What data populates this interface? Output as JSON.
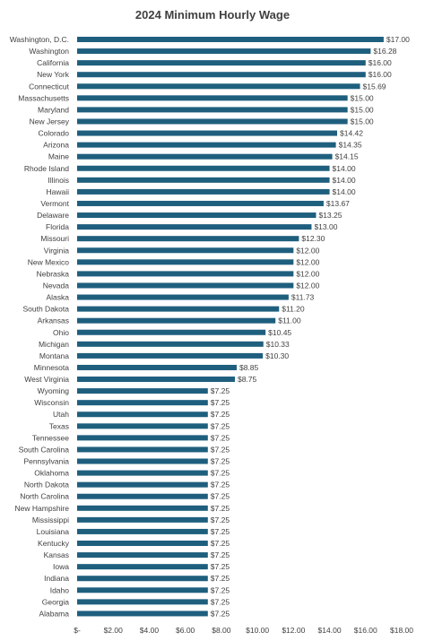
{
  "chart_data": {
    "type": "bar",
    "orientation": "horizontal",
    "title": "2024 Minimum Hourly Wage",
    "xlabel": "",
    "ylabel": "",
    "xlim": [
      0,
      18
    ],
    "x_ticks": [
      0,
      2,
      4,
      6,
      8,
      10,
      12,
      14,
      16,
      18
    ],
    "x_tick_labels": [
      "$-",
      "$2.00",
      "$4.00",
      "$6.00",
      "$8.00",
      "$10.00",
      "$12.00",
      "$14.00",
      "$16.00",
      "$18.00"
    ],
    "grid": false,
    "legend": "none",
    "bar_color": "#1f5f7e",
    "categories": [
      "Washington, D.C.",
      "Washington",
      "California",
      "New York",
      "Connecticut",
      "Massachusetts",
      "Maryland",
      "New Jersey",
      "Colorado",
      "Arizona",
      "Maine",
      "Rhode Island",
      "Illinois",
      "Hawaii",
      "Vermont",
      "Delaware",
      "Florida",
      "Missouri",
      "Virginia",
      "New Mexico",
      "Nebraska",
      "Nevada",
      "Alaska",
      "South Dakota",
      "Arkansas",
      "Ohio",
      "Michigan",
      "Montana",
      "Minnesota",
      "West Virginia",
      "Wyoming",
      "Wisconsin",
      "Utah",
      "Texas",
      "Tennessee",
      "South Carolina",
      "Pennsylvania",
      "Oklahoma",
      "North Dakota",
      "North Carolina",
      "New Hampshire",
      "Mississippi",
      "Louisiana",
      "Kentucky",
      "Kansas",
      "Iowa",
      "Indiana",
      "Idaho",
      "Georgia",
      "Alabama"
    ],
    "values": [
      17.0,
      16.28,
      16.0,
      16.0,
      15.69,
      15.0,
      15.0,
      15.0,
      14.42,
      14.35,
      14.15,
      14.0,
      14.0,
      14.0,
      13.67,
      13.25,
      13.0,
      12.3,
      12.0,
      12.0,
      12.0,
      12.0,
      11.73,
      11.2,
      11.0,
      10.45,
      10.33,
      10.3,
      8.85,
      8.75,
      7.25,
      7.25,
      7.25,
      7.25,
      7.25,
      7.25,
      7.25,
      7.25,
      7.25,
      7.25,
      7.25,
      7.25,
      7.25,
      7.25,
      7.25,
      7.25,
      7.25,
      7.25,
      7.25,
      7.25
    ],
    "data_labels": [
      "$17.00",
      "$16.28",
      "$16.00",
      "$16.00",
      "$15.69",
      "$15.00",
      "$15.00",
      "$15.00",
      "$14.42",
      "$14.35",
      "$14.15",
      "$14.00",
      "$14.00",
      "$14.00",
      "$13.67",
      "$13.25",
      "$13.00",
      "$12.30",
      "$12.00",
      "$12.00",
      "$12.00",
      "$12.00",
      "$11.73",
      "$11.20",
      "$11.00",
      "$10.45",
      "$10.33",
      "$10.30",
      "$8.85",
      "$8.75",
      "$7.25",
      "$7.25",
      "$7.25",
      "$7.25",
      "$7.25",
      "$7.25",
      "$7.25",
      "$7.25",
      "$7.25",
      "$7.25",
      "$7.25",
      "$7.25",
      "$7.25",
      "$7.25",
      "$7.25",
      "$7.25",
      "$7.25",
      "$7.25",
      "$7.25",
      "$7.25"
    ]
  }
}
